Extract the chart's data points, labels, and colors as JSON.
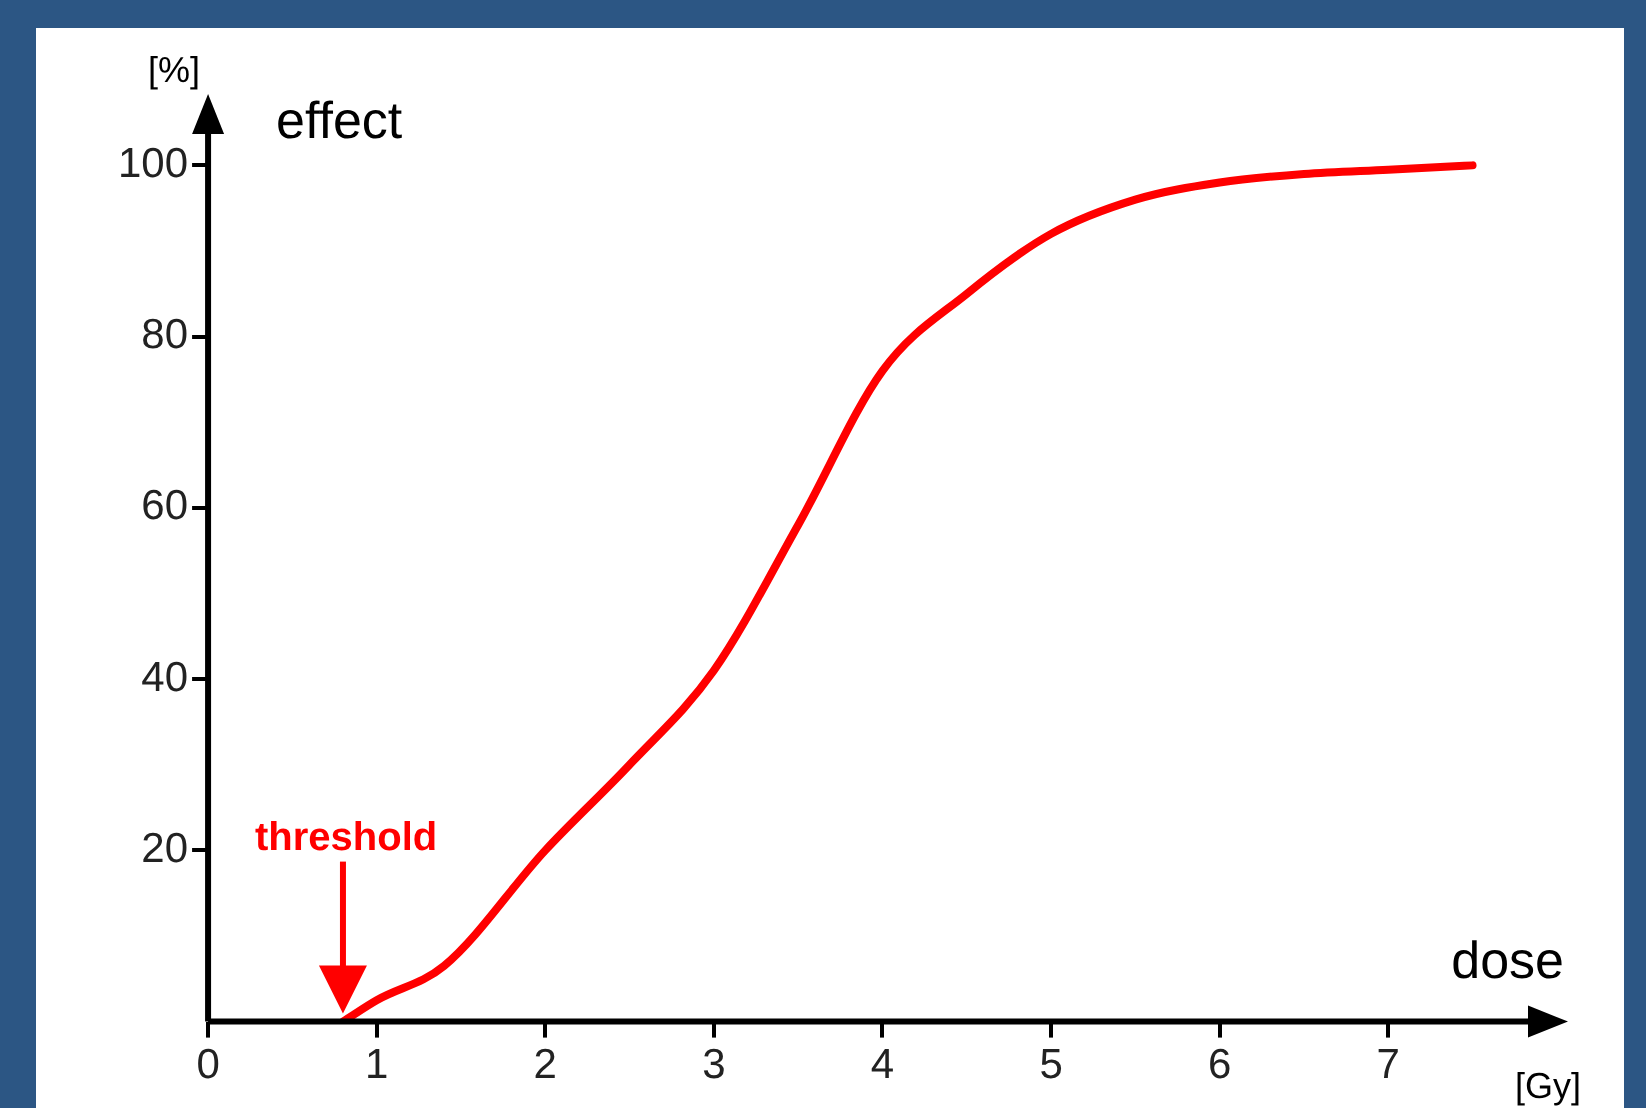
{
  "chart_data": {
    "type": "line",
    "xlabel": "dose",
    "ylabel": "effect",
    "annotations": [
      "[%]",
      "[Gy]",
      "threshold"
    ],
    "x": [
      0.8,
      1.0,
      1.4,
      2.0,
      2.5,
      3.0,
      3.5,
      4.0,
      4.5,
      5.0,
      5.5,
      6.0,
      6.5,
      7.0,
      7.5
    ],
    "series": [
      {
        "color": "#ff0000",
        "values": [
          0,
          2.5,
          6.5,
          20,
          30,
          41,
          58,
          76,
          85,
          92,
          96,
          98,
          99,
          99.5,
          100
        ]
      }
    ],
    "xlim": [
      0,
      7.9
    ],
    "ylim": [
      0,
      106
    ],
    "xticks": [
      0,
      1,
      2,
      3,
      4,
      5,
      6,
      7
    ],
    "yticks": [
      20,
      40,
      60,
      80,
      100
    ],
    "grid": false,
    "legend": false,
    "marker": "none",
    "line_style": "solid"
  }
}
